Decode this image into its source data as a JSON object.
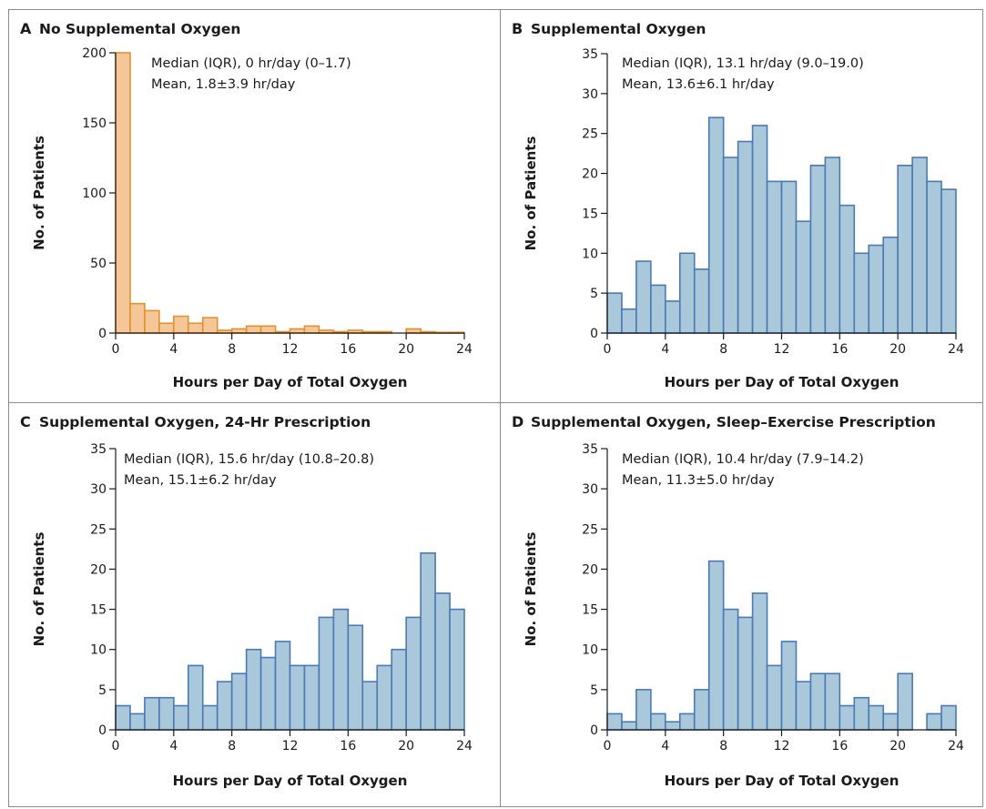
{
  "chart_data": [
    {
      "panel_label": "A",
      "title": "No Supplemental Oxygen",
      "type": "bar",
      "histogram": true,
      "xlabel": "Hours per Day of Total Oxygen",
      "ylabel": "No. of Patients",
      "xlim": [
        0,
        24
      ],
      "ylim": [
        0,
        200
      ],
      "xticks": [
        0,
        4,
        8,
        12,
        16,
        20,
        24
      ],
      "yticks": [
        0,
        50,
        100,
        150,
        200
      ],
      "bin_width": 1,
      "values": [
        210,
        21,
        16,
        7,
        12,
        7,
        11,
        2,
        3,
        5,
        5,
        1,
        3,
        5,
        2,
        1,
        2,
        1,
        1,
        0,
        3,
        1,
        0.5,
        0.5
      ],
      "annotation_lines": [
        "Median (IQR), 0 hr/day (0–1.7)",
        "Mean, 1.8±3.9 hr/day"
      ],
      "fill_color": "#f5c697",
      "edge_color": "#e2922e"
    },
    {
      "panel_label": "B",
      "title": "Supplemental Oxygen",
      "type": "bar",
      "histogram": true,
      "xlabel": "Hours per Day of Total Oxygen",
      "ylabel": "No. of Patients",
      "xlim": [
        0,
        24
      ],
      "ylim": [
        0,
        35
      ],
      "xticks": [
        0,
        4,
        8,
        12,
        16,
        20,
        24
      ],
      "yticks": [
        0,
        5,
        10,
        15,
        20,
        25,
        30,
        35
      ],
      "bin_width": 1,
      "values": [
        5,
        3,
        9,
        6,
        4,
        10,
        8,
        27,
        22,
        24,
        26,
        19,
        19,
        14,
        21,
        22,
        16,
        10,
        11,
        12,
        21,
        22,
        19,
        18
      ],
      "annotation_lines": [
        "Median (IQR), 13.1 hr/day (9.0–19.0)",
        "Mean, 13.6±6.1 hr/day"
      ],
      "fill_color": "#a9c8da",
      "edge_color": "#4a79b5"
    },
    {
      "panel_label": "C",
      "title": "Supplemental Oxygen, 24-Hr Prescription",
      "type": "bar",
      "histogram": true,
      "xlabel": "Hours per Day of Total Oxygen",
      "ylabel": "No. of Patients",
      "xlim": [
        0,
        24
      ],
      "ylim": [
        0,
        35
      ],
      "xticks": [
        0,
        4,
        8,
        12,
        16,
        20,
        24
      ],
      "yticks": [
        0,
        5,
        10,
        15,
        20,
        25,
        30,
        35
      ],
      "bin_width": 1,
      "values": [
        3,
        2,
        4,
        4,
        3,
        8,
        3,
        6,
        7,
        10,
        9,
        11,
        8,
        8,
        14,
        15,
        13,
        6,
        8,
        10,
        14,
        22,
        17,
        15
      ],
      "annotation_lines": [
        "Median (IQR), 15.6 hr/day (10.8–20.8)",
        "Mean, 15.1±6.2 hr/day"
      ],
      "fill_color": "#a9c8da",
      "edge_color": "#4a79b5"
    },
    {
      "panel_label": "D",
      "title": "Supplemental Oxygen, Sleep–Exercise Prescription",
      "type": "bar",
      "histogram": true,
      "xlabel": "Hours per Day of Total Oxygen",
      "ylabel": "No. of Patients",
      "xlim": [
        0,
        24
      ],
      "ylim": [
        0,
        35
      ],
      "xticks": [
        0,
        4,
        8,
        12,
        16,
        20,
        24
      ],
      "yticks": [
        0,
        5,
        10,
        15,
        20,
        25,
        30,
        35
      ],
      "bin_width": 1,
      "values": [
        2,
        1,
        5,
        2,
        1,
        2,
        5,
        21,
        15,
        14,
        17,
        8,
        11,
        6,
        7,
        7,
        3,
        4,
        3,
        2,
        7,
        0,
        2,
        3
      ],
      "annotation_lines": [
        "Median (IQR), 10.4 hr/day (7.9–14.2)",
        "Mean, 11.3±5.0 hr/day"
      ],
      "fill_color": "#a9c8da",
      "edge_color": "#4a79b5"
    }
  ]
}
